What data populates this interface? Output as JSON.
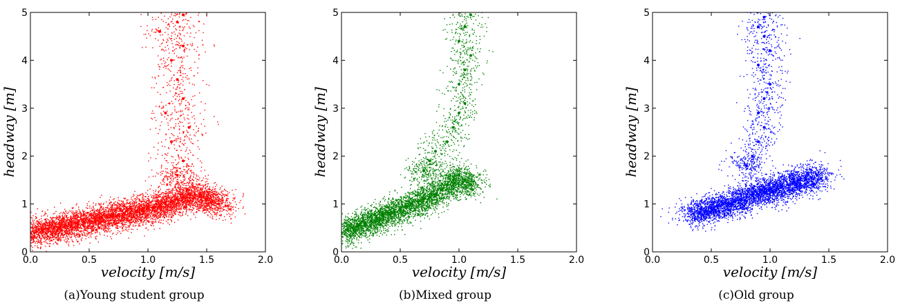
{
  "figure": {
    "panels": [
      {
        "caption": "(a)Young student group",
        "xlabel_italic": "velocity",
        "xlabel_unit": "[m/s]",
        "ylabel_italic": "headway",
        "ylabel_unit": "[m]",
        "color": "#ff0000",
        "xticks": [
          "0.0",
          "0.5",
          "1.0",
          "1.5",
          "2.0"
        ],
        "yticks": [
          "0",
          "1",
          "2",
          "3",
          "4",
          "5"
        ]
      },
      {
        "caption": "(b)Mixed group",
        "xlabel_italic": "velocity",
        "xlabel_unit": "[m/s]",
        "ylabel_italic": "headway",
        "ylabel_unit": "[m]",
        "color": "#008000",
        "xticks": [
          "0.0",
          "0.5",
          "1.0",
          "1.5",
          "2.0"
        ],
        "yticks": [
          "0",
          "1",
          "2",
          "3",
          "4",
          "5"
        ]
      },
      {
        "caption": "(c)Old group",
        "xlabel_italic": "velocity",
        "xlabel_unit": "[m/s]",
        "ylabel_italic": "headway",
        "ylabel_unit": "[m]",
        "color": "#0000ff",
        "xticks": [
          "0.0",
          "0.5",
          "1.0",
          "1.5",
          "2.0"
        ],
        "yticks": [
          "0",
          "1",
          "2",
          "3",
          "4",
          "5"
        ]
      }
    ]
  },
  "chart_data": [
    {
      "type": "scatter",
      "title": "",
      "caption": "(a)Young student group",
      "xlabel": "velocity [m/s]",
      "ylabel": "headway [m]",
      "xlim": [
        0,
        2
      ],
      "ylim": [
        0,
        5
      ],
      "color": "#ff0000",
      "grid": false,
      "series": [
        {
          "x": [
            0.0,
            0.05,
            0.1,
            0.15,
            0.2,
            0.25,
            0.3,
            0.35,
            0.4,
            0.45,
            0.5,
            0.55,
            0.6,
            0.65,
            0.7,
            0.75,
            0.8,
            0.85,
            0.9,
            0.95,
            1.0,
            1.05,
            1.1,
            1.15,
            1.2,
            1.25,
            1.3,
            1.35,
            1.4,
            1.45,
            1.5,
            1.55,
            1.6,
            1.25,
            1.3,
            1.2,
            1.35,
            1.15,
            1.3,
            1.25,
            1.2,
            1.3,
            1.1,
            1.25,
            1.3
          ],
          "y": [
            0.4,
            0.42,
            0.45,
            0.47,
            0.5,
            0.52,
            0.55,
            0.57,
            0.6,
            0.62,
            0.65,
            0.67,
            0.7,
            0.72,
            0.75,
            0.78,
            0.8,
            0.82,
            0.85,
            0.87,
            0.9,
            0.93,
            0.95,
            1.0,
            1.05,
            1.1,
            1.15,
            1.2,
            1.2,
            1.15,
            1.1,
            1.05,
            1.0,
            1.6,
            1.9,
            2.3,
            2.6,
            2.9,
            3.2,
            3.6,
            4.0,
            4.3,
            4.6,
            4.8,
            4.95
          ]
        }
      ]
    },
    {
      "type": "scatter",
      "title": "",
      "caption": "(b)Mixed group",
      "xlabel": "velocity [m/s]",
      "ylabel": "headway [m]",
      "xlim": [
        0,
        2
      ],
      "ylim": [
        0,
        5
      ],
      "color": "#008000",
      "grid": false,
      "series": [
        {
          "x": [
            0.0,
            0.05,
            0.1,
            0.15,
            0.2,
            0.25,
            0.3,
            0.35,
            0.4,
            0.45,
            0.5,
            0.55,
            0.6,
            0.65,
            0.7,
            0.75,
            0.8,
            0.85,
            0.9,
            0.95,
            1.0,
            1.05,
            1.1,
            0.7,
            0.75,
            0.8,
            0.9,
            0.95,
            1.0,
            1.05,
            1.0,
            1.05,
            1.1,
            1.0,
            1.05,
            1.1
          ],
          "y": [
            0.4,
            0.45,
            0.5,
            0.55,
            0.6,
            0.65,
            0.7,
            0.75,
            0.8,
            0.85,
            0.9,
            0.95,
            1.0,
            1.05,
            1.1,
            1.15,
            1.2,
            1.3,
            1.4,
            1.5,
            1.6,
            1.5,
            1.4,
            1.7,
            1.9,
            2.1,
            2.3,
            2.6,
            2.9,
            3.1,
            3.5,
            3.8,
            4.1,
            4.4,
            4.7,
            4.95
          ]
        }
      ]
    },
    {
      "type": "scatter",
      "title": "",
      "caption": "(c)Old group",
      "xlabel": "velocity [m/s]",
      "ylabel": "headway [m]",
      "xlim": [
        0,
        2
      ],
      "ylim": [
        0,
        5
      ],
      "color": "#0000ff",
      "grid": false,
      "series": [
        {
          "x": [
            0.35,
            0.4,
            0.45,
            0.5,
            0.55,
            0.6,
            0.65,
            0.7,
            0.75,
            0.8,
            0.85,
            0.9,
            0.95,
            1.0,
            1.05,
            1.1,
            1.15,
            1.2,
            1.25,
            1.3,
            1.35,
            1.4,
            0.8,
            0.85,
            0.9,
            0.95,
            0.9,
            0.95,
            1.0,
            0.9,
            1.0,
            0.95,
            0.9,
            0.95
          ],
          "y": [
            0.8,
            0.8,
            0.85,
            0.9,
            0.95,
            1.0,
            1.0,
            1.05,
            1.1,
            1.15,
            1.2,
            1.2,
            1.25,
            1.3,
            1.3,
            1.35,
            1.4,
            1.45,
            1.5,
            1.5,
            1.55,
            1.6,
            1.8,
            2.0,
            2.3,
            2.6,
            2.9,
            3.2,
            3.5,
            3.9,
            4.2,
            4.5,
            4.7,
            4.9
          ]
        }
      ]
    }
  ]
}
